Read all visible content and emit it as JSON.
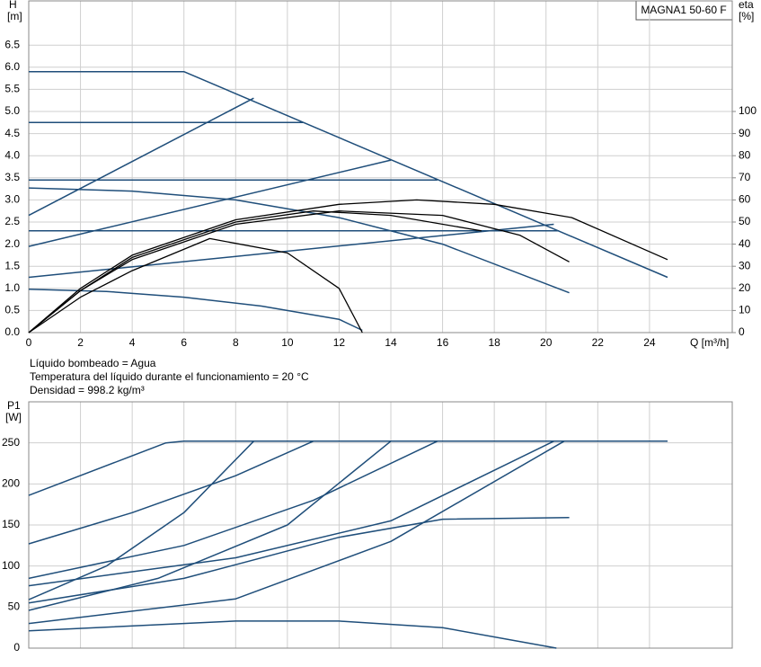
{
  "chart_data": [
    {
      "type": "line",
      "title": "MAGNA1 50-60 F",
      "ylabel": [
        "H",
        "[m]"
      ],
      "y2label": [
        "eta",
        "[%]"
      ],
      "xlabel": "Q [m³/h]",
      "notes": [
        "Líquido bombeado = Agua",
        "Temperatura del líquido durante el funcionamiento = 20 °C",
        "Densidad = 998.2 kg/m³"
      ],
      "xlim": [
        0,
        27.2
      ],
      "xticks": [
        0,
        2,
        4,
        6,
        8,
        10,
        12,
        14,
        16,
        18,
        20,
        22,
        24
      ],
      "ylim": [
        0,
        7.5
      ],
      "yticks": [
        {
          "value": 0,
          "label": "0.0"
        },
        0.5,
        {
          "value": 1,
          "label": "1.0"
        },
        1.5,
        {
          "value": 2,
          "label": "2.0"
        },
        2.5,
        {
          "value": 3,
          "label": "3.0"
        },
        3.5,
        {
          "value": 4,
          "label": "4.0"
        },
        4.5,
        {
          "value": 5,
          "label": "5.0"
        },
        5.5,
        {
          "value": 6,
          "label": "6.0"
        },
        6.5
      ],
      "y2lim": [
        0,
        150
      ],
      "y2ticks": [
        0,
        10,
        20,
        30,
        40,
        50,
        60,
        70,
        80,
        90,
        100
      ],
      "grid": true,
      "series": [
        {
          "color": "#1f4e7a",
          "x": [
            0,
            6,
            24.7
          ],
          "values": [
            5.9,
            5.9,
            1.25
          ]
        },
        {
          "color": "#1f4e7a",
          "x": [
            0,
            10.6
          ],
          "values": [
            4.75,
            4.75
          ]
        },
        {
          "color": "#1f4e7a",
          "x": [
            0,
            15.8
          ],
          "values": [
            3.45,
            3.45
          ]
        },
        {
          "color": "#1f4e7a",
          "x": [
            0,
            20.5
          ],
          "values": [
            2.3,
            2.3
          ]
        },
        {
          "color": "#1f4e7a",
          "x": [
            0,
            8.7
          ],
          "values": [
            2.65,
            5.3
          ]
        },
        {
          "color": "#1f4e7a",
          "x": [
            0,
            14
          ],
          "values": [
            1.95,
            3.9
          ]
        },
        {
          "color": "#1f4e7a",
          "x": [
            0,
            20.3
          ],
          "values": [
            1.25,
            2.45
          ]
        },
        {
          "color": "#1f4e7a",
          "x": [
            0,
            4,
            8,
            12,
            16,
            20.9
          ],
          "values": [
            3.27,
            3.2,
            3.0,
            2.6,
            2.0,
            0.9
          ]
        },
        {
          "color": "#1f4e7a",
          "x": [
            0,
            3,
            6,
            9,
            12,
            12.9
          ],
          "values": [
            0.98,
            0.93,
            0.8,
            0.6,
            0.3,
            0.05
          ]
        },
        {
          "color": "#000000",
          "axis": "y2",
          "x": [
            0,
            2,
            4,
            8,
            12,
            15,
            18,
            21,
            24.7
          ],
          "values": [
            0,
            20,
            35,
            51,
            58,
            60,
            58,
            52,
            33
          ]
        },
        {
          "color": "#000000",
          "axis": "y2",
          "x": [
            0,
            2,
            4,
            8,
            12,
            16,
            19,
            20.9
          ],
          "values": [
            0,
            19,
            33,
            49,
            55,
            53,
            44,
            32
          ]
        },
        {
          "color": "#000000",
          "axis": "y2",
          "x": [
            0,
            2,
            4,
            8,
            11,
            14,
            17.5
          ],
          "values": [
            0,
            19,
            34,
            50,
            55,
            53,
            46
          ]
        },
        {
          "color": "#000000",
          "axis": "y2",
          "x": [
            0,
            2,
            4,
            7,
            10,
            12,
            12.9
          ],
          "values": [
            0,
            16,
            28,
            42.5,
            36,
            20,
            0
          ]
        }
      ]
    },
    {
      "type": "line",
      "ylabel": [
        "P1",
        "[W]"
      ],
      "xlim": [
        0,
        27.2
      ],
      "xticks": [
        0,
        2,
        4,
        6,
        8,
        10,
        12,
        14,
        16,
        18,
        20,
        22,
        24
      ],
      "show_xtick_labels": false,
      "ylim": [
        0,
        300
      ],
      "yticks": [
        0,
        50,
        100,
        150,
        200,
        250
      ],
      "grid": true,
      "series": [
        {
          "color": "#1f4e7a",
          "x": [
            0,
            5.3,
            6,
            24.7
          ],
          "values": [
            186,
            250,
            252,
            252
          ]
        },
        {
          "color": "#1f4e7a",
          "x": [
            0,
            4,
            8,
            11
          ],
          "values": [
            127,
            165,
            210,
            252
          ]
        },
        {
          "color": "#1f4e7a",
          "x": [
            0,
            3,
            6,
            8.7
          ],
          "values": [
            59,
            100,
            165,
            252
          ]
        },
        {
          "color": "#1f4e7a",
          "x": [
            0,
            5,
            10,
            14
          ],
          "values": [
            46,
            85,
            150,
            252
          ]
        },
        {
          "color": "#1f4e7a",
          "x": [
            0,
            6,
            11,
            15.8
          ],
          "values": [
            85,
            125,
            180,
            252
          ]
        },
        {
          "color": "#1f4e7a",
          "x": [
            0,
            8,
            14,
            20.3
          ],
          "values": [
            76,
            110,
            155,
            252
          ]
        },
        {
          "color": "#1f4e7a",
          "x": [
            0,
            8,
            14,
            20.7
          ],
          "values": [
            30,
            60,
            130,
            252
          ]
        },
        {
          "color": "#1f4e7a",
          "x": [
            0,
            6,
            12,
            16,
            20.9
          ],
          "values": [
            55,
            85,
            135,
            157,
            159
          ]
        },
        {
          "color": "#1f4e7a",
          "x": [
            0,
            8,
            12,
            16,
            20.4
          ],
          "values": [
            21,
            33,
            33,
            25,
            0
          ]
        }
      ]
    }
  ]
}
